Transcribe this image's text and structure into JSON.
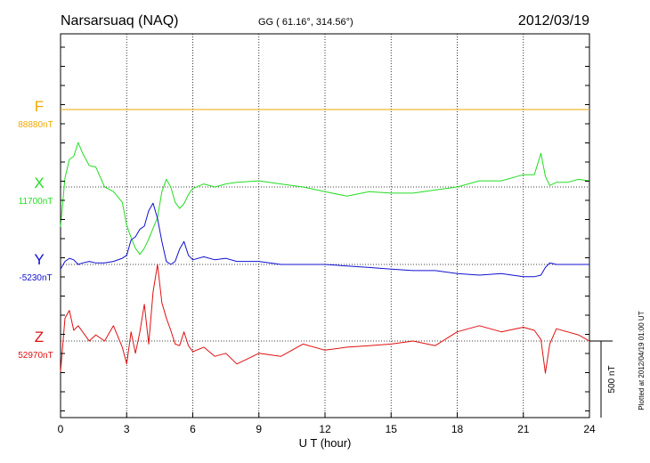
{
  "header": {
    "station": "Narsarsuaq (NAQ)",
    "coords": "GG ( 61.16°, 314.56°)",
    "date": "2012/03/19"
  },
  "footer_note": "Plotted at 2012/04/19 01:00 UT",
  "colors": {
    "F": "#f0a800",
    "X": "#22dd22",
    "Y": "#1010d0",
    "Z": "#e01010",
    "axis": "#000000"
  },
  "chart_data": {
    "type": "line",
    "xlabel": "U T (hour)",
    "xlim": [
      0,
      24
    ],
    "xticks": [
      "0",
      "3",
      "6",
      "9",
      "12",
      "15",
      "18",
      "21",
      "24"
    ],
    "scale_bar_label": "500 nT",
    "scale_bar_nT": 500,
    "series": [
      {
        "name": "F",
        "baseline": "88880nT",
        "x": [
          0,
          24
        ],
        "y": [
          0,
          0
        ]
      },
      {
        "name": "X",
        "baseline": "11700nT",
        "x": [
          0,
          0.2,
          0.4,
          0.6,
          0.8,
          1.0,
          1.3,
          1.6,
          2.0,
          2.4,
          2.8,
          3.0,
          3.2,
          3.4,
          3.6,
          3.8,
          4.0,
          4.2,
          4.4,
          4.6,
          4.8,
          5.0,
          5.2,
          5.4,
          5.6,
          5.8,
          6.0,
          6.5,
          7.0,
          7.5,
          8.0,
          9.0,
          10.0,
          11.0,
          12.0,
          13.0,
          14.0,
          15.0,
          16.0,
          17.0,
          18.0,
          19.0,
          20.0,
          21.0,
          21.5,
          21.8,
          22.0,
          22.2,
          22.5,
          23.0,
          23.5,
          24.0
        ],
        "y": [
          -260,
          60,
          180,
          200,
          290,
          220,
          140,
          130,
          0,
          -30,
          -100,
          -250,
          -330,
          -400,
          -440,
          -400,
          -340,
          -270,
          -200,
          -30,
          50,
          0,
          -100,
          -140,
          -110,
          -50,
          -10,
          20,
          0,
          20,
          30,
          40,
          20,
          0,
          -30,
          -60,
          -30,
          -40,
          -40,
          -20,
          0,
          40,
          40,
          80,
          80,
          220,
          70,
          10,
          30,
          30,
          50,
          40
        ]
      },
      {
        "name": "Y",
        "baseline": "-5230nT",
        "x": [
          0,
          0.2,
          0.4,
          0.6,
          0.8,
          1.0,
          1.3,
          1.6,
          2.0,
          2.4,
          2.8,
          3.0,
          3.2,
          3.4,
          3.6,
          3.8,
          4.0,
          4.2,
          4.4,
          4.6,
          4.8,
          5.0,
          5.2,
          5.4,
          5.6,
          5.8,
          6.0,
          6.5,
          7.0,
          7.5,
          8.0,
          9.0,
          10.0,
          11.0,
          12.0,
          13.0,
          14.0,
          15.0,
          16.0,
          17.0,
          18.0,
          19.0,
          20.0,
          21.0,
          21.5,
          21.8,
          22.0,
          22.2,
          22.5,
          23.0,
          23.5,
          24.0
        ],
        "y": [
          -30,
          20,
          40,
          30,
          0,
          10,
          20,
          10,
          10,
          20,
          40,
          60,
          160,
          180,
          230,
          250,
          350,
          400,
          300,
          150,
          20,
          0,
          20,
          100,
          150,
          60,
          30,
          50,
          30,
          40,
          20,
          20,
          0,
          0,
          0,
          -10,
          -20,
          -30,
          -40,
          -40,
          -60,
          -70,
          -60,
          -80,
          -80,
          -70,
          -20,
          10,
          0,
          0,
          0,
          0
        ]
      },
      {
        "name": "Z",
        "baseline": "52970nT",
        "x": [
          0,
          0.2,
          0.4,
          0.6,
          0.8,
          1.0,
          1.3,
          1.6,
          2.0,
          2.4,
          2.8,
          3.0,
          3.2,
          3.4,
          3.6,
          3.8,
          4.0,
          4.2,
          4.4,
          4.6,
          4.8,
          5.0,
          5.2,
          5.4,
          5.6,
          5.8,
          6.0,
          6.5,
          7.0,
          7.5,
          8.0,
          9.0,
          10.0,
          11.0,
          12.0,
          13.0,
          14.0,
          15.0,
          16.0,
          17.0,
          18.0,
          19.0,
          20.0,
          21.0,
          21.5,
          21.8,
          22.0,
          22.2,
          22.5,
          23.0,
          23.5,
          24.0
        ],
        "y": [
          -200,
          150,
          200,
          70,
          100,
          60,
          0,
          40,
          0,
          100,
          -40,
          -150,
          60,
          -80,
          60,
          240,
          -20,
          320,
          500,
          250,
          150,
          70,
          -20,
          -30,
          60,
          -30,
          -70,
          -40,
          -100,
          -80,
          -150,
          -80,
          -100,
          -20,
          -60,
          -40,
          -30,
          -20,
          0,
          -30,
          60,
          100,
          60,
          90,
          70,
          10,
          -210,
          -20,
          80,
          60,
          40,
          0
        ]
      }
    ]
  }
}
